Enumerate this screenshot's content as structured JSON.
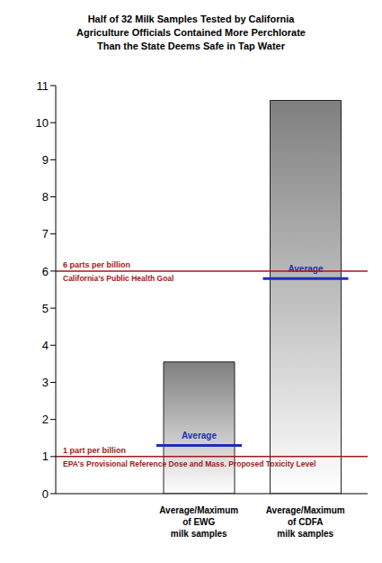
{
  "chart_data": {
    "type": "bar",
    "title": "Half of 32 Milk Samples Tested by California\nAgriculture Officials Contained More Perchlorate\nThan the State Deems Safe in Tap Water",
    "categories": [
      "Average/Maximum\nof EWG\nmilk samples",
      "Average/Maximum\nof CDFA\nmilk samples"
    ],
    "values": [
      3.55,
      10.6
    ],
    "color": "#7f7f7f",
    "averages": {
      "name": "Average",
      "values": [
        1.3,
        5.8
      ],
      "color": "#1c2fb8"
    },
    "reference_lines": [
      {
        "value": 6,
        "label": "6 parts per billion",
        "sublabel": "California's Public Health Goal",
        "color": "#a31919"
      },
      {
        "value": 1,
        "label": "1 part per billion",
        "sublabel": "EPA's Provisional Reference Dose and Mass. Proposed Toxicity Level",
        "color": "#a31919"
      }
    ],
    "ylim": [
      0,
      11
    ],
    "yticks": [
      0,
      1,
      2,
      3,
      4,
      5,
      6,
      7,
      8,
      9,
      10,
      11
    ],
    "grid": false
  }
}
